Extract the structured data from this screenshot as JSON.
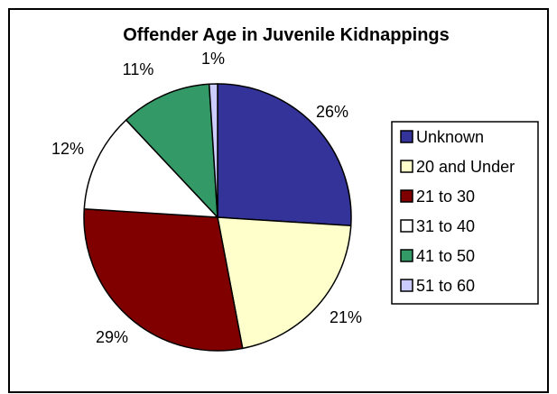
{
  "chart_data": {
    "type": "pie",
    "title": "Offender Age in Juvenile Kidnappings",
    "categories": [
      "Unknown",
      "20 and Under",
      "21 to 30",
      "31 to 40",
      "41 to 50",
      "51 to 60"
    ],
    "values": [
      26,
      21,
      29,
      12,
      11,
      1
    ],
    "value_labels": [
      "26%",
      "21%",
      "29%",
      "12%",
      "11%",
      "1%"
    ],
    "colors": [
      "#333399",
      "#FFFFCC",
      "#800000",
      "#FFFFFF",
      "#339966",
      "#CCCCFF"
    ],
    "legend_position": "right",
    "start_angle": "top, clockwise"
  }
}
